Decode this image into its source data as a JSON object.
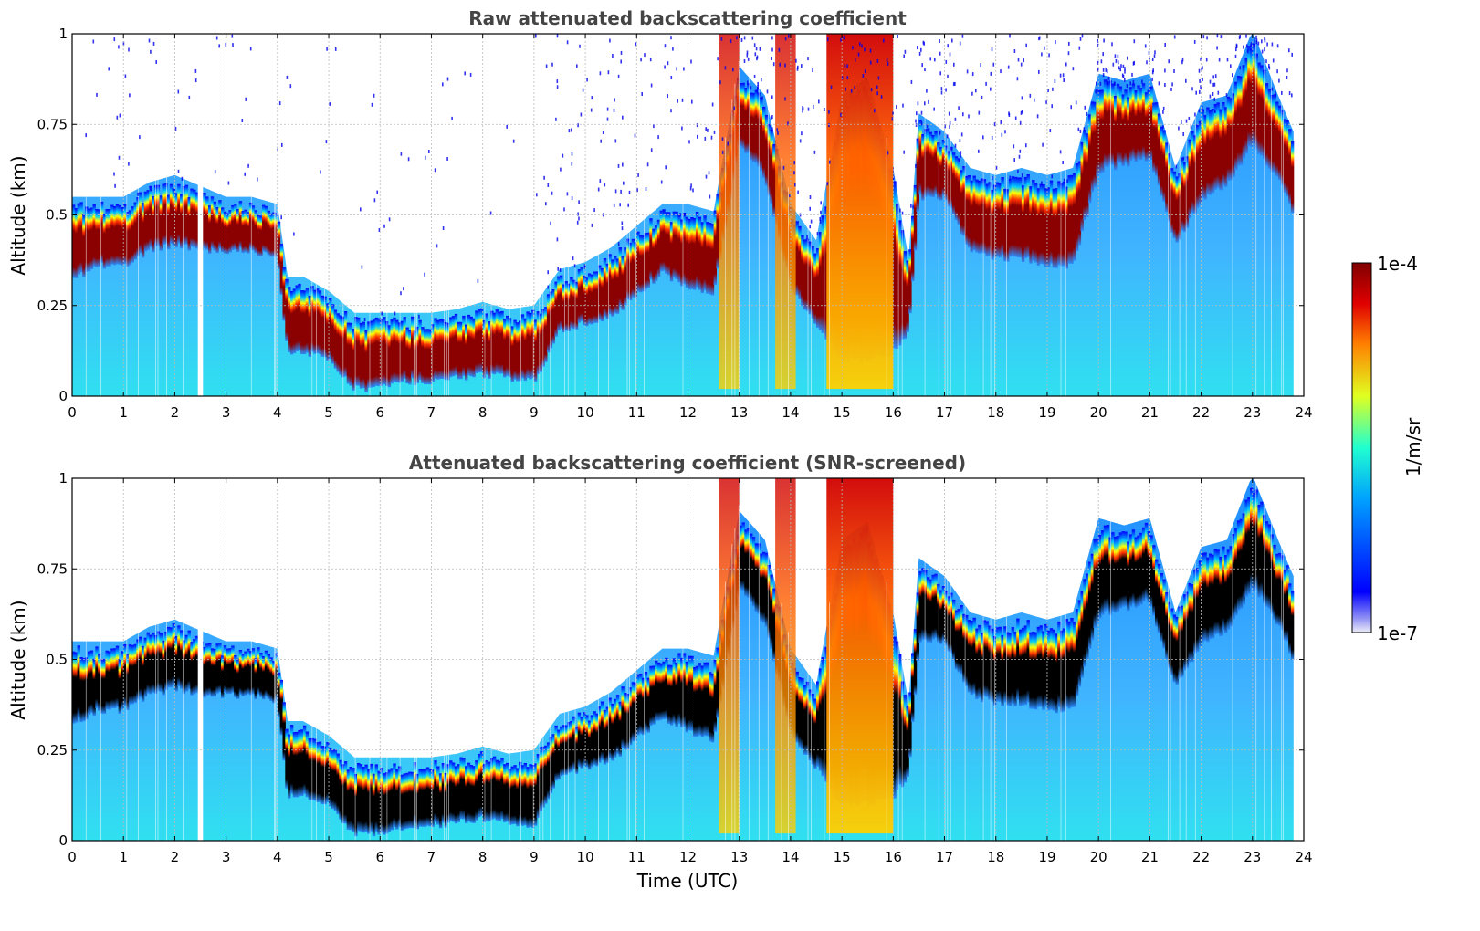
{
  "chart_data": [
    {
      "type": "heatmap",
      "title": "Raw attenuated backscattering coefficient",
      "xlabel": "",
      "ylabel": "Altitude (km)",
      "xlim": [
        0,
        24
      ],
      "ylim": [
        0,
        1
      ],
      "x_ticks": [
        "0",
        "1",
        "2",
        "3",
        "4",
        "5",
        "6",
        "7",
        "8",
        "9",
        "10",
        "11",
        "12",
        "13",
        "14",
        "15",
        "16",
        "17",
        "18",
        "19",
        "20",
        "21",
        "22",
        "23",
        "24"
      ],
      "y_ticks": [
        "0",
        "0.25",
        "0.5",
        "0.75",
        "1"
      ],
      "grid": true,
      "screened": false,
      "layer_top_km": [
        [
          0,
          0.52
        ],
        [
          0.5,
          0.52
        ],
        [
          1,
          0.52
        ],
        [
          1.5,
          0.56
        ],
        [
          2,
          0.58
        ],
        [
          2.5,
          0.55
        ],
        [
          3,
          0.52
        ],
        [
          3.5,
          0.52
        ],
        [
          4,
          0.5
        ],
        [
          4.2,
          0.3
        ],
        [
          4.5,
          0.3
        ],
        [
          5,
          0.26
        ],
        [
          5.5,
          0.2
        ],
        [
          6,
          0.2
        ],
        [
          6.5,
          0.2
        ],
        [
          7,
          0.2
        ],
        [
          7.5,
          0.21
        ],
        [
          8,
          0.23
        ],
        [
          8.5,
          0.21
        ],
        [
          9,
          0.22
        ],
        [
          9.5,
          0.32
        ],
        [
          10,
          0.34
        ],
        [
          10.5,
          0.38
        ],
        [
          11,
          0.44
        ],
        [
          11.5,
          0.5
        ],
        [
          12,
          0.5
        ],
        [
          12.5,
          0.48
        ],
        [
          13,
          0.88
        ],
        [
          13.5,
          0.8
        ],
        [
          14,
          0.5
        ],
        [
          14.5,
          0.4
        ],
        [
          15,
          0.8
        ],
        [
          15.5,
          0.85
        ],
        [
          16,
          0.6
        ],
        [
          16.3,
          0.35
        ],
        [
          16.5,
          0.75
        ],
        [
          17,
          0.7
        ],
        [
          17.5,
          0.6
        ],
        [
          18,
          0.58
        ],
        [
          18.5,
          0.6
        ],
        [
          19,
          0.58
        ],
        [
          19.5,
          0.6
        ],
        [
          20,
          0.86
        ],
        [
          20.5,
          0.84
        ],
        [
          21,
          0.86
        ],
        [
          21.5,
          0.6
        ],
        [
          22,
          0.78
        ],
        [
          22.5,
          0.8
        ],
        [
          23,
          0.98
        ],
        [
          23.5,
          0.8
        ],
        [
          23.8,
          0.7
        ]
      ],
      "layer_bottom_km": [
        [
          0,
          0.32
        ],
        [
          0.5,
          0.36
        ],
        [
          1,
          0.36
        ],
        [
          1.5,
          0.4
        ],
        [
          2,
          0.42
        ],
        [
          2.5,
          0.4
        ],
        [
          3,
          0.4
        ],
        [
          3.5,
          0.4
        ],
        [
          4,
          0.38
        ],
        [
          4.2,
          0.12
        ],
        [
          4.5,
          0.12
        ],
        [
          5,
          0.1
        ],
        [
          5.5,
          0.02
        ],
        [
          6,
          0.02
        ],
        [
          6.5,
          0.04
        ],
        [
          7,
          0.04
        ],
        [
          7.5,
          0.05
        ],
        [
          8,
          0.06
        ],
        [
          8.5,
          0.05
        ],
        [
          9,
          0.04
        ],
        [
          9.5,
          0.18
        ],
        [
          10,
          0.2
        ],
        [
          10.5,
          0.22
        ],
        [
          11,
          0.28
        ],
        [
          11.5,
          0.34
        ],
        [
          12,
          0.3
        ],
        [
          12.5,
          0.28
        ],
        [
          13,
          0.7
        ],
        [
          13.5,
          0.6
        ],
        [
          14,
          0.3
        ],
        [
          14.5,
          0.2
        ],
        [
          15,
          0.1
        ],
        [
          15.5,
          0.1
        ],
        [
          16,
          0.12
        ],
        [
          16.3,
          0.18
        ],
        [
          16.5,
          0.55
        ],
        [
          17,
          0.55
        ],
        [
          17.5,
          0.4
        ],
        [
          18,
          0.38
        ],
        [
          18.5,
          0.38
        ],
        [
          19,
          0.36
        ],
        [
          19.5,
          0.36
        ],
        [
          20,
          0.62
        ],
        [
          20.5,
          0.64
        ],
        [
          21,
          0.66
        ],
        [
          21.5,
          0.42
        ],
        [
          22,
          0.54
        ],
        [
          22.5,
          0.58
        ],
        [
          23,
          0.7
        ],
        [
          23.5,
          0.6
        ],
        [
          23.8,
          0.5
        ]
      ],
      "precip_bands_utc": [
        [
          12.6,
          13.0
        ],
        [
          13.7,
          14.1
        ],
        [
          14.7,
          16.0
        ]
      ]
    },
    {
      "type": "heatmap",
      "title": "Attenuated backscattering coefficient (SNR-screened)",
      "xlabel": "Time (UTC)",
      "ylabel": "Altitude (km)",
      "xlim": [
        0,
        24
      ],
      "ylim": [
        0,
        1
      ],
      "x_ticks": [
        "0",
        "1",
        "2",
        "3",
        "4",
        "5",
        "6",
        "7",
        "8",
        "9",
        "10",
        "11",
        "12",
        "13",
        "14",
        "15",
        "16",
        "17",
        "18",
        "19",
        "20",
        "21",
        "22",
        "23",
        "24"
      ],
      "y_ticks": [
        "0",
        "0.25",
        "0.5",
        "0.75",
        "1"
      ],
      "grid": true,
      "screened": true
    }
  ],
  "colorbar": {
    "label": "1/m/sr",
    "max_label": "1e-4",
    "min_label": "1e-7",
    "colormap": "jet"
  },
  "colors": {
    "background": "#ffffff",
    "title": "#444444",
    "grid": "#bbbbbb",
    "saturated": "#000000"
  }
}
